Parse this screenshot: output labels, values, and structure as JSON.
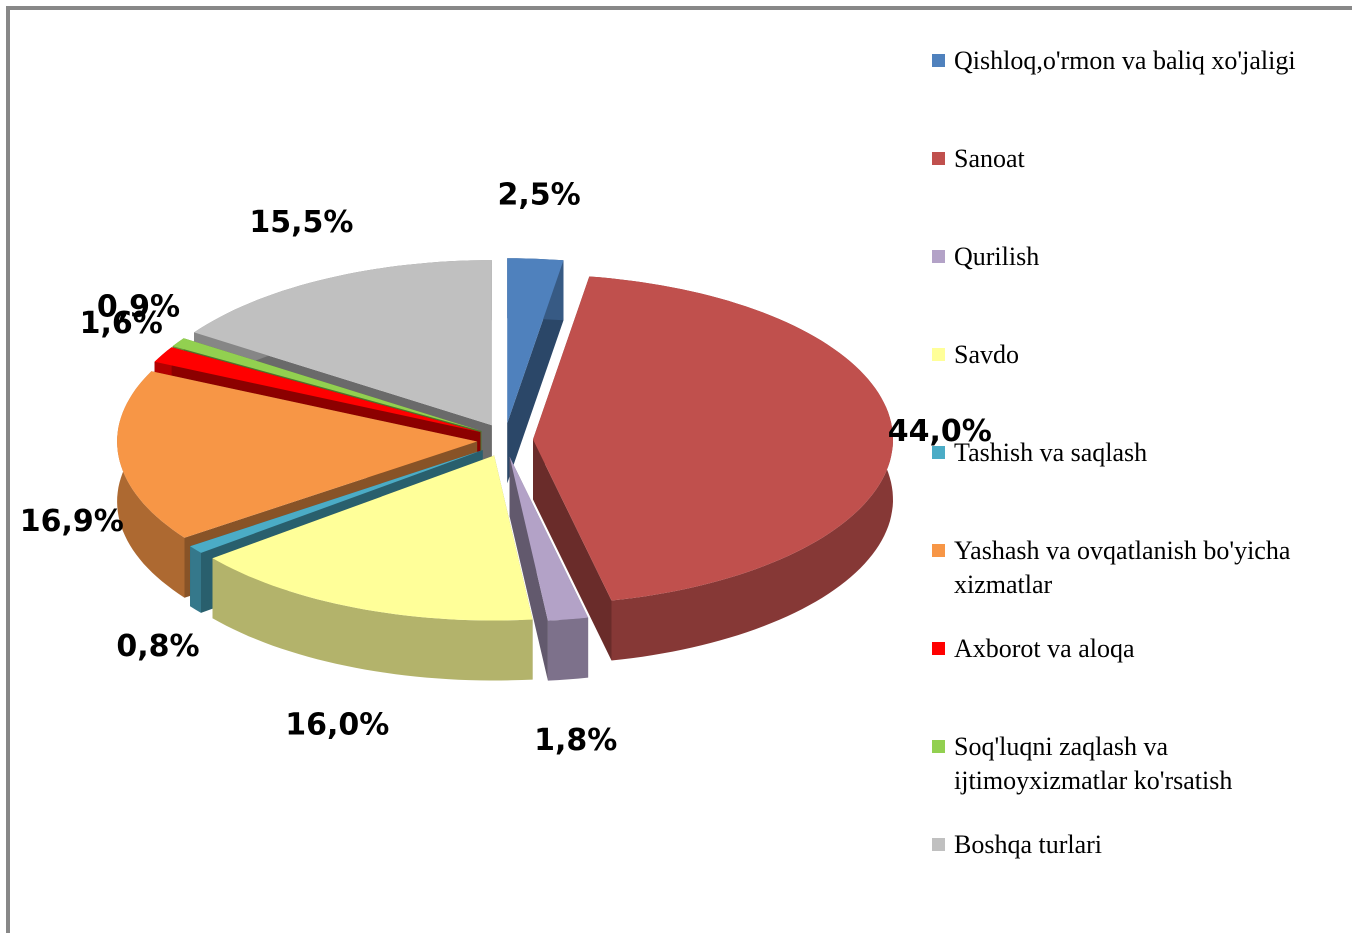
{
  "chart_data": {
    "type": "pie",
    "categories": [
      "Qishloq,o'rmon va baliq xo'jaligi",
      "Sanoat",
      "Qurilish",
      "Savdo",
      "Tashish va saqlash",
      "Yashash va ovqatlanish bo'yicha xizmatlar",
      "Axborot va aloqa",
      "Soq'luqni zaqlash va ijtimoyxizmatlar ko'rsatish",
      "Boshqa turlari"
    ],
    "values": [
      2.5,
      44.0,
      1.8,
      16.0,
      0.8,
      16.9,
      1.6,
      0.9,
      15.5
    ],
    "value_labels": [
      "2,5%",
      "44,0%",
      "1,8%",
      "16,0%",
      "0,8%",
      "16,9%",
      "1,6%",
      "0,9%",
      "15,5%"
    ],
    "colors": [
      "#4f81bd",
      "#c0504d",
      "#b3a2c7",
      "#ffff99",
      "#4bacc6",
      "#f79646",
      "#ff0000",
      "#92d050",
      "#c0c0c0"
    ],
    "legend": "right"
  }
}
